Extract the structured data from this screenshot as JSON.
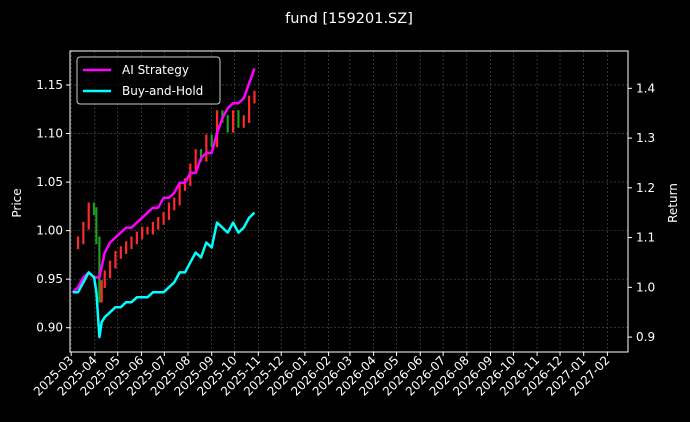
{
  "chart_data": {
    "type": "line",
    "title": "fund [159201.SZ]",
    "ylabel_left": "Price",
    "ylabel_right": "Return",
    "xlabel": "",
    "ylim_left": [
      0.875,
      1.185
    ],
    "ylim_right": [
      0.87,
      1.475
    ],
    "y_ticks_left": [
      "0.90",
      "0.95",
      "1.00",
      "1.05",
      "1.10",
      "1.15"
    ],
    "y_ticks_right": [
      "0.9",
      "1.0",
      "1.1",
      "1.2",
      "1.3",
      "1.4"
    ],
    "x_ticks": [
      "2025-03",
      "2025-04",
      "2025-05",
      "2025-06",
      "2025-07",
      "2025-08",
      "2025-09",
      "2025-10",
      "2025-11",
      "2025-12",
      "2026-01",
      "2026-02",
      "2026-03",
      "2026-04",
      "2026-05",
      "2026-06",
      "2026-07",
      "2026-08",
      "2026-09",
      "2026-10",
      "2026-11",
      "2026-12",
      "2027-01",
      "2027-02"
    ],
    "grid": true,
    "legend_position": "top-left",
    "colors": {
      "ai_strategy": "#ff00ff",
      "buy_and_hold": "#00ffff",
      "candle_up": "#ff2a2a",
      "candle_down": "#1e9e1e",
      "background": "#000000",
      "grid": "#555555"
    },
    "series": [
      {
        "name": "AI Strategy",
        "axis": "right",
        "x": [
          "2025-03-03",
          "2025-03-10",
          "2025-03-17",
          "2025-03-24",
          "2025-03-31",
          "2025-04-07",
          "2025-04-14",
          "2025-04-21",
          "2025-04-28",
          "2025-05-05",
          "2025-05-12",
          "2025-05-19",
          "2025-05-26",
          "2025-06-02",
          "2025-06-09",
          "2025-06-16",
          "2025-06-23",
          "2025-06-30",
          "2025-07-07",
          "2025-07-14",
          "2025-07-21",
          "2025-07-28",
          "2025-08-04",
          "2025-08-11",
          "2025-08-18",
          "2025-08-25",
          "2025-09-01",
          "2025-09-08",
          "2025-09-15",
          "2025-09-22",
          "2025-09-29",
          "2025-10-06",
          "2025-10-13",
          "2025-10-20",
          "2025-10-27"
        ],
        "values": [
          0.99,
          1.0,
          1.02,
          1.03,
          1.02,
          1.02,
          1.07,
          1.09,
          1.1,
          1.11,
          1.12,
          1.12,
          1.13,
          1.14,
          1.15,
          1.16,
          1.16,
          1.18,
          1.18,
          1.19,
          1.21,
          1.21,
          1.23,
          1.23,
          1.26,
          1.27,
          1.27,
          1.31,
          1.34,
          1.36,
          1.37,
          1.37,
          1.38,
          1.41,
          1.44
        ]
      },
      {
        "name": "Buy-and-Hold",
        "axis": "right",
        "x": [
          "2025-03-03",
          "2025-03-10",
          "2025-03-17",
          "2025-03-24",
          "2025-03-31",
          "2025-04-03",
          "2025-04-07",
          "2025-04-10",
          "2025-04-14",
          "2025-04-21",
          "2025-04-28",
          "2025-05-05",
          "2025-05-12",
          "2025-05-19",
          "2025-05-26",
          "2025-06-02",
          "2025-06-09",
          "2025-06-16",
          "2025-06-23",
          "2025-06-30",
          "2025-07-07",
          "2025-07-14",
          "2025-07-21",
          "2025-07-28",
          "2025-08-04",
          "2025-08-11",
          "2025-08-18",
          "2025-08-25",
          "2025-09-01",
          "2025-09-08",
          "2025-09-15",
          "2025-09-22",
          "2025-09-29",
          "2025-10-06",
          "2025-10-13",
          "2025-10-20",
          "2025-10-27"
        ],
        "values": [
          0.99,
          0.99,
          1.01,
          1.03,
          1.02,
          0.99,
          0.9,
          0.93,
          0.94,
          0.95,
          0.96,
          0.96,
          0.97,
          0.97,
          0.98,
          0.98,
          0.98,
          0.99,
          0.99,
          0.99,
          1.0,
          1.01,
          1.03,
          1.03,
          1.05,
          1.07,
          1.06,
          1.09,
          1.08,
          1.13,
          1.12,
          1.11,
          1.13,
          1.11,
          1.12,
          1.14,
          1.15
        ]
      },
      {
        "name": "Price",
        "axis": "left",
        "kind": "candlestick_close",
        "x": [
          "2025-03-03",
          "2025-03-10",
          "2025-03-17",
          "2025-03-24",
          "2025-03-31",
          "2025-04-03",
          "2025-04-07",
          "2025-04-10",
          "2025-04-14",
          "2025-04-21",
          "2025-04-28",
          "2025-05-05",
          "2025-05-12",
          "2025-05-19",
          "2025-05-26",
          "2025-06-02",
          "2025-06-09",
          "2025-06-16",
          "2025-06-23",
          "2025-06-30",
          "2025-07-07",
          "2025-07-14",
          "2025-07-21",
          "2025-07-28",
          "2025-08-04",
          "2025-08-11",
          "2025-08-18",
          "2025-08-25",
          "2025-09-01",
          "2025-09-08",
          "2025-09-15",
          "2025-09-22",
          "2025-09-29",
          "2025-10-06",
          "2025-10-13",
          "2025-10-20",
          "2025-10-27"
        ],
        "values": [
          0.985,
          0.99,
          1.005,
          1.025,
          1.02,
          0.99,
          0.93,
          0.945,
          0.955,
          0.965,
          0.975,
          0.98,
          0.985,
          0.99,
          0.995,
          1.0,
          1.0,
          1.005,
          1.01,
          1.015,
          1.025,
          1.03,
          1.045,
          1.05,
          1.065,
          1.08,
          1.075,
          1.095,
          1.09,
          1.12,
          1.115,
          1.105,
          1.12,
          1.11,
          1.115,
          1.135,
          1.14
        ]
      }
    ]
  }
}
